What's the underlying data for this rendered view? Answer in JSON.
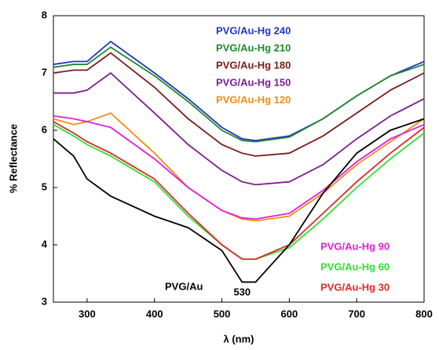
{
  "chart_data": {
    "type": "line",
    "xlabel": "λ (nm)",
    "ylabel": "% Reflectance",
    "x": [
      250,
      280,
      300,
      335,
      400,
      450,
      500,
      530,
      550,
      600,
      650,
      700,
      750,
      800
    ],
    "xlim": [
      250,
      800
    ],
    "xticks": [
      300,
      400,
      500,
      600,
      700,
      800
    ],
    "ylim": [
      3,
      8
    ],
    "yticks": [
      3,
      4,
      5,
      6,
      7,
      8
    ],
    "annotation": {
      "text": "530",
      "x": 530
    },
    "series": [
      {
        "name": "PVG/Au-Hg 240",
        "color": "#1f35c8",
        "values": [
          7.15,
          7.2,
          7.2,
          7.55,
          7.0,
          6.55,
          6.05,
          5.85,
          5.82,
          5.9,
          6.2,
          6.6,
          6.95,
          7.2
        ]
      },
      {
        "name": "PVG/Au-Hg 210",
        "color": "#1f8a2a",
        "values": [
          7.1,
          7.15,
          7.15,
          7.45,
          6.95,
          6.5,
          6.0,
          5.82,
          5.8,
          5.88,
          6.2,
          6.6,
          6.95,
          7.15
        ]
      },
      {
        "name": "PVG/Au-Hg 180",
        "color": "#7b1a1a",
        "values": [
          7.0,
          7.05,
          7.05,
          7.35,
          6.75,
          6.2,
          5.75,
          5.6,
          5.55,
          5.6,
          5.9,
          6.3,
          6.7,
          7.0
        ]
      },
      {
        "name": "PVG/Au-Hg 150",
        "color": "#7a1f8f",
        "values": [
          6.65,
          6.65,
          6.7,
          7.0,
          6.3,
          5.75,
          5.3,
          5.1,
          5.05,
          5.1,
          5.4,
          5.85,
          6.25,
          6.55
        ]
      },
      {
        "name": "PVG/Au-Hg 120",
        "color": "#f08c10",
        "values": [
          6.2,
          6.1,
          6.15,
          6.3,
          5.6,
          5.0,
          4.6,
          4.45,
          4.42,
          4.5,
          4.9,
          5.4,
          5.8,
          6.2
        ]
      },
      {
        "name": "PVG/Au-Hg 90",
        "color": "#e020d8",
        "values": [
          6.25,
          6.2,
          6.15,
          6.05,
          5.5,
          5.0,
          4.6,
          4.47,
          4.45,
          4.55,
          4.95,
          5.45,
          5.85,
          6.1
        ]
      },
      {
        "name": "PVG/Au-Hg 60",
        "color": "#30e030",
        "values": [
          6.1,
          5.9,
          5.75,
          5.55,
          5.1,
          4.5,
          4.0,
          3.75,
          3.75,
          3.95,
          4.45,
          5.0,
          5.5,
          5.95
        ]
      },
      {
        "name": "PVG/Au-Hg 30",
        "color": "#e02828",
        "values": [
          6.15,
          5.95,
          5.8,
          5.6,
          5.15,
          4.55,
          4.0,
          3.75,
          3.75,
          4.0,
          4.55,
          5.1,
          5.6,
          6.05
        ]
      },
      {
        "name": "PVG/Au",
        "color": "#000000",
        "values": [
          5.85,
          5.55,
          5.15,
          4.85,
          4.5,
          4.3,
          3.9,
          3.35,
          3.35,
          4.0,
          4.9,
          5.6,
          6.0,
          6.2
        ]
      }
    ]
  }
}
